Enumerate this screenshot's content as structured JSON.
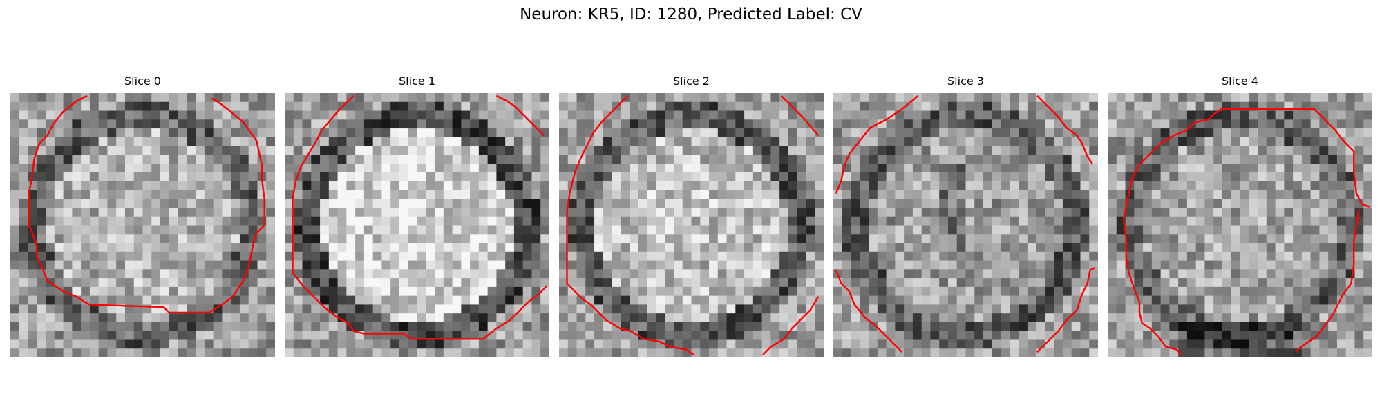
{
  "figure": {
    "title": "Neuron: KR5, ID: 1280, Predicted Label: CV",
    "contour_color": "#ff0000",
    "colormap": "grayscale"
  },
  "slices": [
    {
      "title": "Slice 0",
      "contours": [
        [
          [
            0.29,
            0.01
          ],
          [
            0.25,
            0.03
          ],
          [
            0.2,
            0.07
          ],
          [
            0.16,
            0.12
          ],
          [
            0.14,
            0.16
          ],
          [
            0.11,
            0.19
          ],
          [
            0.09,
            0.25
          ],
          [
            0.08,
            0.33
          ],
          [
            0.07,
            0.38
          ],
          [
            0.07,
            0.5
          ],
          [
            0.08,
            0.52
          ],
          [
            0.1,
            0.58
          ],
          [
            0.1,
            0.62
          ],
          [
            0.12,
            0.66
          ],
          [
            0.14,
            0.71
          ],
          [
            0.17,
            0.73
          ],
          [
            0.2,
            0.75
          ],
          [
            0.25,
            0.77
          ],
          [
            0.28,
            0.79
          ],
          [
            0.3,
            0.8
          ],
          [
            0.58,
            0.81
          ],
          [
            0.6,
            0.83
          ],
          [
            0.75,
            0.83
          ],
          [
            0.8,
            0.8
          ],
          [
            0.84,
            0.77
          ],
          [
            0.88,
            0.71
          ],
          [
            0.9,
            0.66
          ],
          [
            0.92,
            0.56
          ],
          [
            0.93,
            0.53
          ],
          [
            0.96,
            0.5
          ],
          [
            0.96,
            0.4
          ],
          [
            0.95,
            0.32
          ],
          [
            0.95,
            0.27
          ],
          [
            0.93,
            0.18
          ],
          [
            0.88,
            0.11
          ],
          [
            0.82,
            0.06
          ],
          [
            0.78,
            0.03
          ],
          [
            0.76,
            0.02
          ]
        ]
      ]
    },
    {
      "title": "Slice 1",
      "contours": [
        [
          [
            0.26,
            0.01
          ],
          [
            0.2,
            0.07
          ],
          [
            0.14,
            0.14
          ],
          [
            0.12,
            0.18
          ],
          [
            0.09,
            0.23
          ],
          [
            0.06,
            0.28
          ],
          [
            0.04,
            0.34
          ],
          [
            0.03,
            0.4
          ],
          [
            0.03,
            0.5
          ],
          [
            0.03,
            0.58
          ],
          [
            0.03,
            0.68
          ],
          [
            0.07,
            0.73
          ],
          [
            0.11,
            0.77
          ],
          [
            0.15,
            0.81
          ],
          [
            0.2,
            0.85
          ],
          [
            0.24,
            0.87
          ],
          [
            0.26,
            0.9
          ],
          [
            0.3,
            0.91
          ],
          [
            0.45,
            0.91
          ],
          [
            0.48,
            0.93
          ],
          [
            0.75,
            0.93
          ],
          [
            0.8,
            0.89
          ],
          [
            0.85,
            0.86
          ],
          [
            0.89,
            0.82
          ],
          [
            0.92,
            0.79
          ],
          [
            0.96,
            0.76
          ],
          [
            0.99,
            0.73
          ]
        ],
        [
          [
            0.8,
            0.01
          ],
          [
            0.84,
            0.03
          ],
          [
            0.87,
            0.05
          ],
          [
            0.91,
            0.09
          ],
          [
            0.94,
            0.12
          ],
          [
            0.98,
            0.16
          ]
        ]
      ]
    },
    {
      "title": "Slice 2",
      "contours": [
        [
          [
            0.26,
            0.01
          ],
          [
            0.2,
            0.07
          ],
          [
            0.16,
            0.11
          ],
          [
            0.13,
            0.15
          ],
          [
            0.11,
            0.19
          ],
          [
            0.08,
            0.25
          ],
          [
            0.06,
            0.3
          ],
          [
            0.04,
            0.38
          ],
          [
            0.03,
            0.45
          ],
          [
            0.03,
            0.6
          ],
          [
            0.03,
            0.72
          ],
          [
            0.06,
            0.75
          ],
          [
            0.09,
            0.78
          ],
          [
            0.12,
            0.8
          ],
          [
            0.15,
            0.83
          ],
          [
            0.18,
            0.86
          ],
          [
            0.23,
            0.89
          ],
          [
            0.27,
            0.9
          ],
          [
            0.32,
            0.93
          ],
          [
            0.38,
            0.94
          ],
          [
            0.42,
            0.96
          ],
          [
            0.48,
            0.97
          ],
          [
            0.51,
            0.99
          ]
        ],
        [
          [
            0.84,
            0.01
          ],
          [
            0.88,
            0.05
          ],
          [
            0.92,
            0.09
          ],
          [
            0.98,
            0.16
          ]
        ],
        [
          [
            0.77,
            0.99
          ],
          [
            0.8,
            0.96
          ],
          [
            0.85,
            0.93
          ],
          [
            0.88,
            0.89
          ],
          [
            0.92,
            0.85
          ],
          [
            0.95,
            0.82
          ],
          [
            0.98,
            0.77
          ]
        ]
      ]
    },
    {
      "title": "Slice 3",
      "contours": [
        [
          [
            0.32,
            0.01
          ],
          [
            0.26,
            0.06
          ],
          [
            0.2,
            0.1
          ],
          [
            0.14,
            0.13
          ],
          [
            0.1,
            0.18
          ],
          [
            0.06,
            0.23
          ],
          [
            0.04,
            0.28
          ],
          [
            0.03,
            0.33
          ],
          [
            0.01,
            0.38
          ]
        ],
        [
          [
            0.77,
            0.01
          ],
          [
            0.81,
            0.05
          ],
          [
            0.85,
            0.09
          ],
          [
            0.88,
            0.13
          ],
          [
            0.92,
            0.16
          ],
          [
            0.94,
            0.19
          ],
          [
            0.96,
            0.24
          ],
          [
            0.98,
            0.27
          ]
        ],
        [
          [
            0.01,
            0.67
          ],
          [
            0.03,
            0.72
          ],
          [
            0.06,
            0.75
          ],
          [
            0.08,
            0.8
          ],
          [
            0.12,
            0.85
          ],
          [
            0.16,
            0.88
          ],
          [
            0.2,
            0.92
          ],
          [
            0.24,
            0.96
          ],
          [
            0.26,
            0.98
          ]
        ],
        [
          [
            0.77,
            0.98
          ],
          [
            0.8,
            0.95
          ],
          [
            0.85,
            0.9
          ],
          [
            0.88,
            0.86
          ],
          [
            0.92,
            0.82
          ],
          [
            0.94,
            0.76
          ],
          [
            0.96,
            0.72
          ],
          [
            0.97,
            0.67
          ],
          [
            0.99,
            0.66
          ]
        ]
      ]
    },
    {
      "title": "Slice 4",
      "contours": [
        [
          [
            0.28,
            0.99
          ],
          [
            0.26,
            0.97
          ],
          [
            0.22,
            0.96
          ],
          [
            0.19,
            0.92
          ],
          [
            0.16,
            0.89
          ],
          [
            0.13,
            0.87
          ],
          [
            0.12,
            0.83
          ],
          [
            0.12,
            0.79
          ],
          [
            0.1,
            0.74
          ],
          [
            0.08,
            0.68
          ],
          [
            0.07,
            0.62
          ],
          [
            0.07,
            0.55
          ],
          [
            0.06,
            0.48
          ],
          [
            0.07,
            0.43
          ],
          [
            0.08,
            0.38
          ],
          [
            0.09,
            0.33
          ],
          [
            0.12,
            0.27
          ],
          [
            0.17,
            0.22
          ],
          [
            0.2,
            0.19
          ],
          [
            0.25,
            0.16
          ],
          [
            0.3,
            0.14
          ],
          [
            0.33,
            0.11
          ],
          [
            0.38,
            0.1
          ],
          [
            0.4,
            0.08
          ],
          [
            0.43,
            0.06
          ],
          [
            0.78,
            0.06
          ],
          [
            0.82,
            0.1
          ],
          [
            0.86,
            0.14
          ],
          [
            0.89,
            0.18
          ],
          [
            0.93,
            0.22
          ],
          [
            0.93,
            0.3
          ],
          [
            0.94,
            0.38
          ],
          [
            0.96,
            0.42
          ],
          [
            0.99,
            0.43
          ]
        ],
        [
          [
            0.71,
            0.98
          ],
          [
            0.73,
            0.96
          ],
          [
            0.76,
            0.94
          ],
          [
            0.79,
            0.92
          ],
          [
            0.82,
            0.88
          ],
          [
            0.85,
            0.84
          ],
          [
            0.87,
            0.8
          ],
          [
            0.89,
            0.76
          ],
          [
            0.92,
            0.72
          ],
          [
            0.93,
            0.65
          ],
          [
            0.93,
            0.56
          ],
          [
            0.94,
            0.5
          ],
          [
            0.95,
            0.44
          ]
        ]
      ]
    }
  ]
}
